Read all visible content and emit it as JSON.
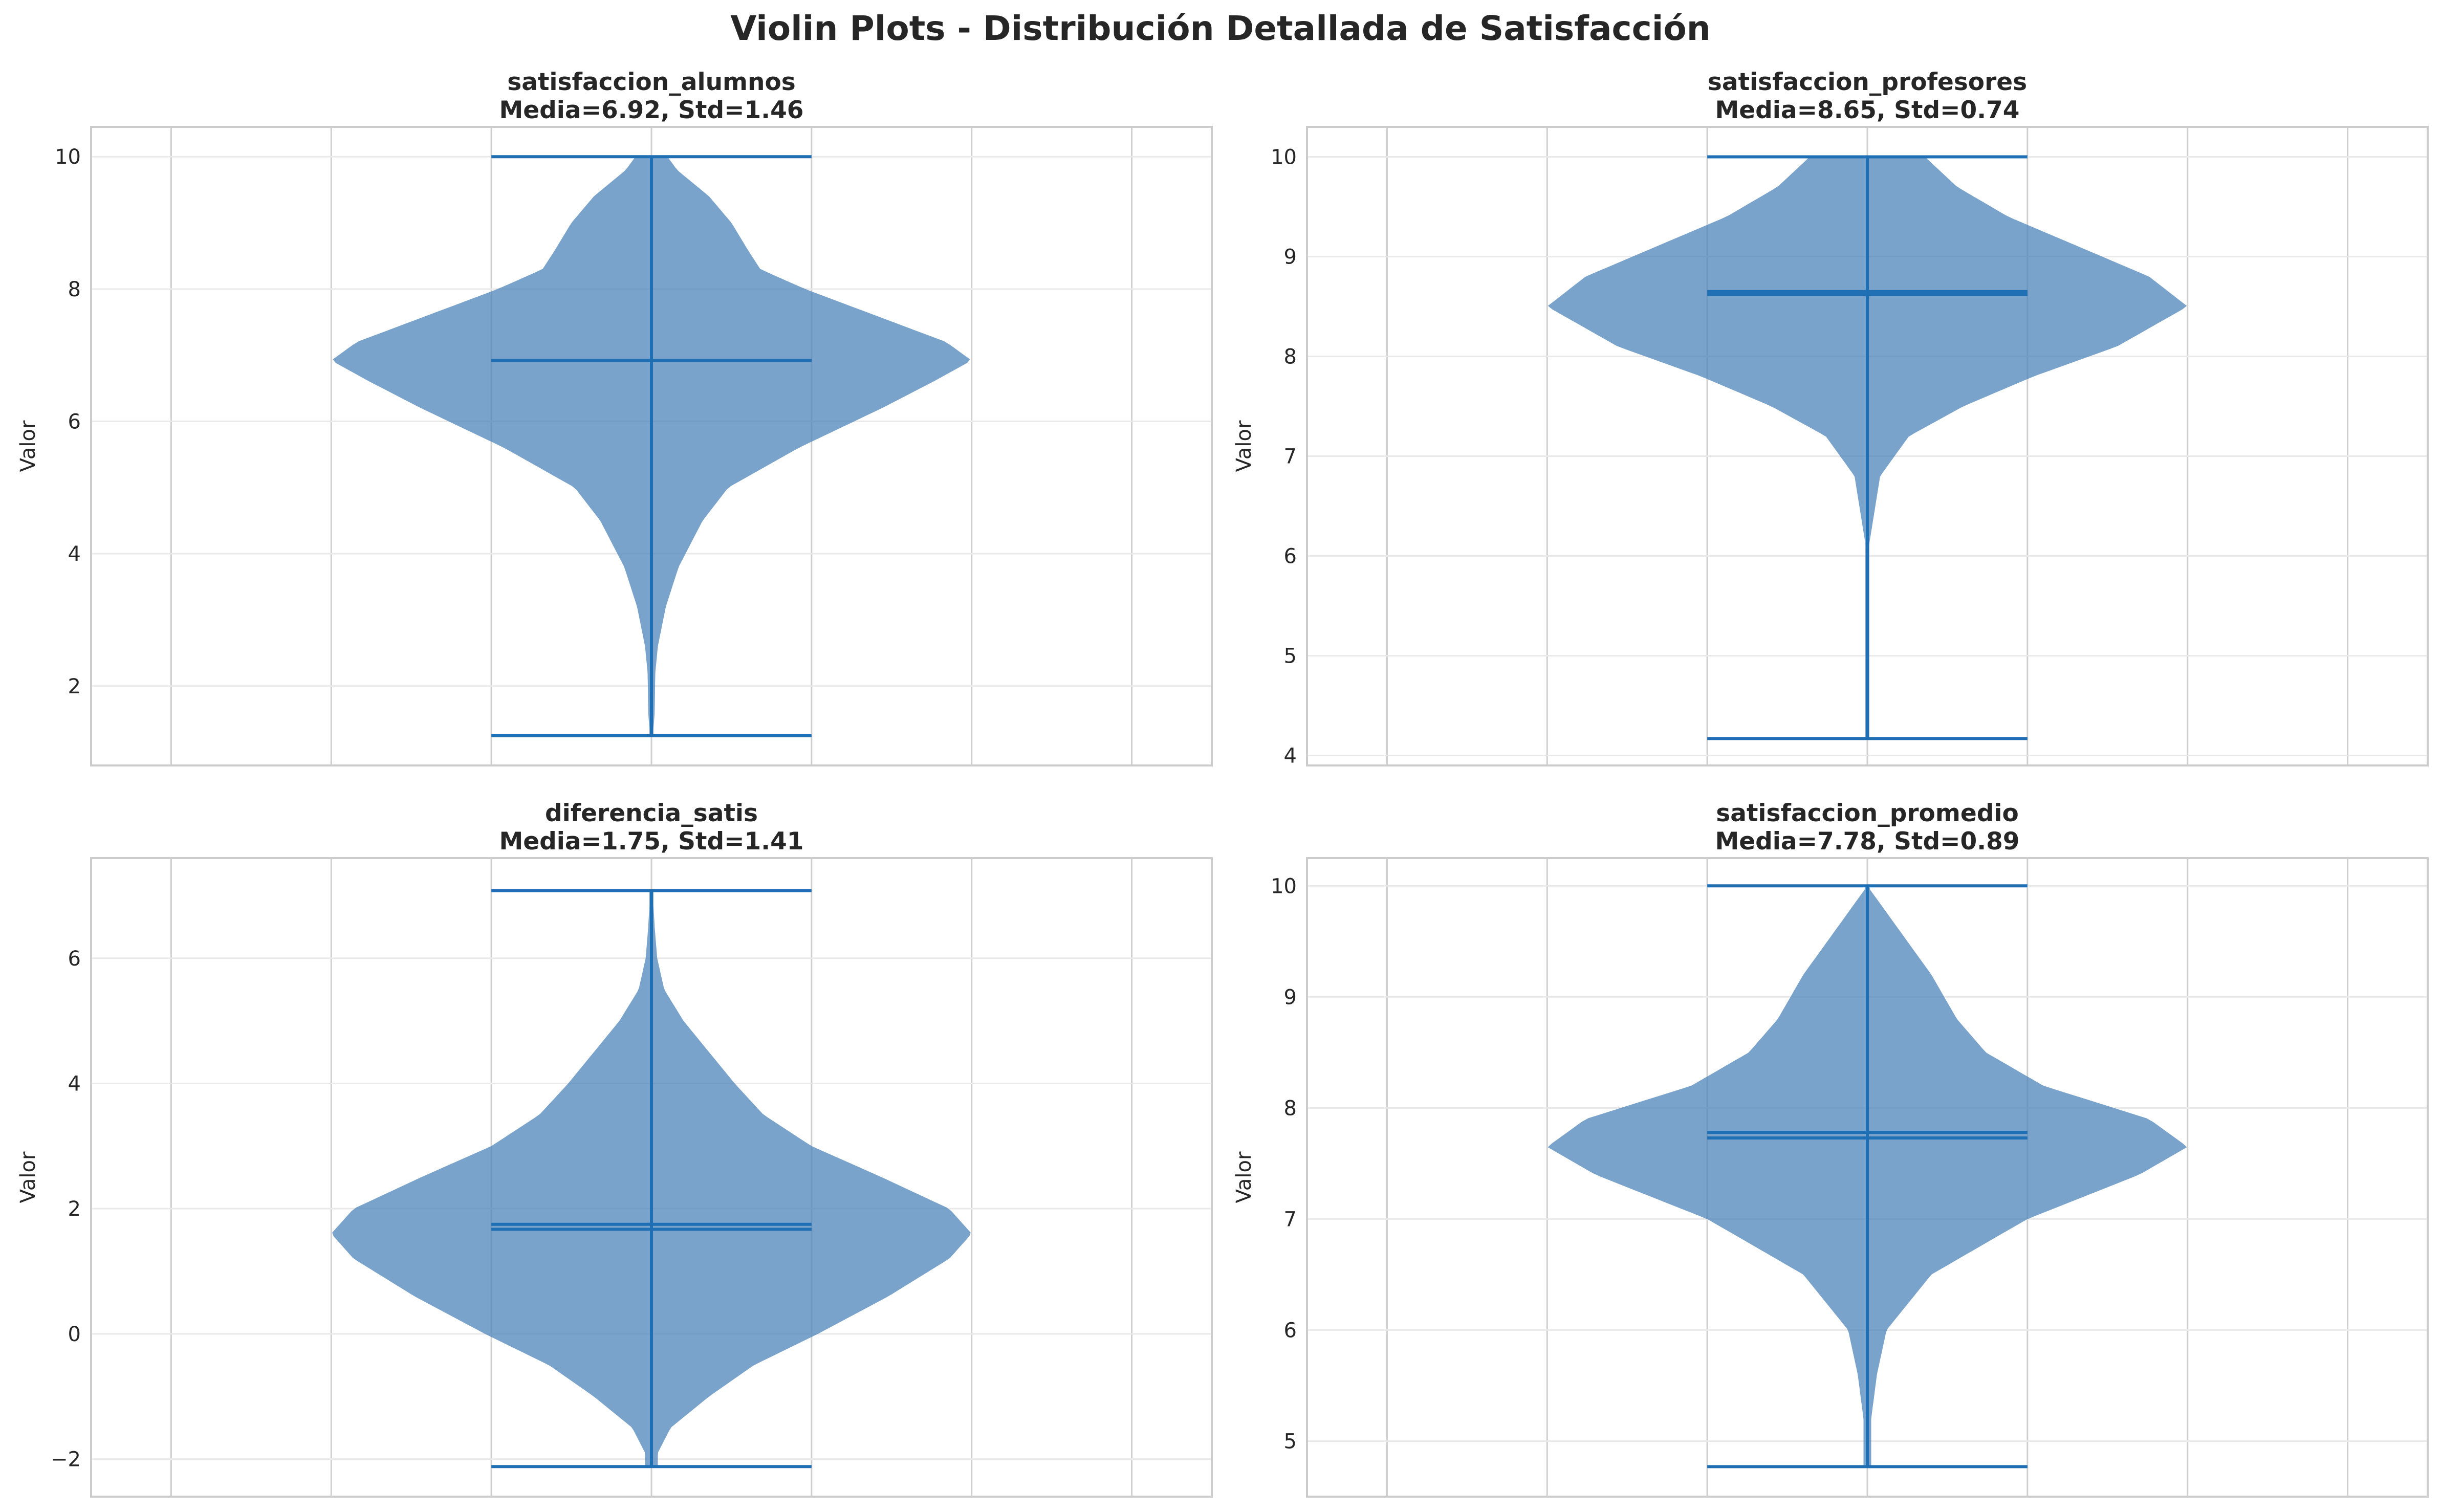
{
  "title": "Violin Plots - Distribución Detallada de Satisfacción",
  "colors": {
    "violin_fill": "#4c83b9",
    "line": "#1f6fb4",
    "grid": "#e9e9e9",
    "vgrid": "#cfcfcf",
    "spine": "#cccccc"
  },
  "chart_data": [
    {
      "type": "violin",
      "title_line1": "satisfaccion_alumnos",
      "title_line2": "Media=6.92, Std=1.46",
      "ylabel": "Valor",
      "ylim": [
        0.8,
        10.45
      ],
      "yticks": [
        2,
        4,
        6,
        8,
        10
      ],
      "ytick_labels": [
        "2",
        "4",
        "6",
        "8",
        "10"
      ],
      "stats": {
        "min": 1.25,
        "max": 10.0,
        "mean": 6.92,
        "median": 6.92
      },
      "density": [
        [
          1.25,
          0.005
        ],
        [
          1.6,
          0.01
        ],
        [
          2.2,
          0.012
        ],
        [
          2.6,
          0.02
        ],
        [
          3.2,
          0.045
        ],
        [
          3.8,
          0.085
        ],
        [
          4.5,
          0.16
        ],
        [
          5.0,
          0.24
        ],
        [
          5.6,
          0.46
        ],
        [
          6.2,
          0.72
        ],
        [
          6.6,
          0.88
        ],
        [
          6.92,
          1.0
        ],
        [
          7.2,
          0.92
        ],
        [
          7.6,
          0.7
        ],
        [
          8.0,
          0.48
        ],
        [
          8.3,
          0.34
        ],
        [
          8.6,
          0.3
        ],
        [
          9.0,
          0.25
        ],
        [
          9.4,
          0.18
        ],
        [
          9.8,
          0.08
        ],
        [
          10.0,
          0.05
        ]
      ]
    },
    {
      "type": "violin",
      "title_line1": "satisfaccion_profesores",
      "title_line2": "Media=8.65, Std=0.74",
      "ylabel": "Valor",
      "ylim": [
        3.9,
        10.3
      ],
      "yticks": [
        4,
        5,
        6,
        7,
        8,
        9,
        10
      ],
      "ytick_labels": [
        "4",
        "5",
        "6",
        "7",
        "8",
        "9",
        "10"
      ],
      "stats": {
        "min": 4.17,
        "max": 10.0,
        "mean": 8.65,
        "median": 8.62
      },
      "density": [
        [
          4.17,
          0.0
        ],
        [
          5.5,
          0.0
        ],
        [
          6.0,
          0.0
        ],
        [
          6.3,
          0.015
        ],
        [
          6.8,
          0.04
        ],
        [
          7.2,
          0.13
        ],
        [
          7.5,
          0.3
        ],
        [
          7.8,
          0.52
        ],
        [
          8.1,
          0.78
        ],
        [
          8.5,
          1.0
        ],
        [
          8.8,
          0.88
        ],
        [
          9.1,
          0.66
        ],
        [
          9.4,
          0.44
        ],
        [
          9.7,
          0.28
        ],
        [
          10.0,
          0.18
        ]
      ]
    },
    {
      "type": "violin",
      "title_line1": "diferencia_satis",
      "title_line2": "Media=1.75, Std=1.41",
      "ylabel": "Valor",
      "ylim": [
        -2.6,
        7.6
      ],
      "yticks": [
        -2,
        0,
        2,
        4,
        6
      ],
      "ytick_labels": [
        "−2",
        "0",
        "2",
        "4",
        "6"
      ],
      "stats": {
        "min": -2.12,
        "max": 7.08,
        "mean": 1.75,
        "median": 1.67
      },
      "density": [
        [
          -2.12,
          0.02
        ],
        [
          -1.9,
          0.02
        ],
        [
          -1.5,
          0.06
        ],
        [
          -1.0,
          0.18
        ],
        [
          -0.5,
          0.32
        ],
        [
          0.0,
          0.52
        ],
        [
          0.6,
          0.74
        ],
        [
          1.2,
          0.93
        ],
        [
          1.6,
          1.0
        ],
        [
          2.0,
          0.93
        ],
        [
          2.5,
          0.72
        ],
        [
          3.0,
          0.5
        ],
        [
          3.5,
          0.35
        ],
        [
          4.0,
          0.26
        ],
        [
          4.5,
          0.18
        ],
        [
          5.0,
          0.1
        ],
        [
          5.5,
          0.04
        ],
        [
          6.0,
          0.018
        ],
        [
          6.5,
          0.01
        ],
        [
          7.08,
          0.004
        ]
      ]
    },
    {
      "type": "violin",
      "title_line1": "satisfaccion_promedio",
      "title_line2": "Media=7.78, Std=0.89",
      "ylabel": "Valor",
      "ylim": [
        4.5,
        10.25
      ],
      "yticks": [
        5,
        6,
        7,
        8,
        9,
        10
      ],
      "ytick_labels": [
        "5",
        "6",
        "7",
        "8",
        "9",
        "10"
      ],
      "stats": {
        "min": 4.77,
        "max": 10.0,
        "mean": 7.78,
        "median": 7.73
      },
      "density": [
        [
          4.77,
          0.012
        ],
        [
          5.2,
          0.012
        ],
        [
          5.6,
          0.03
        ],
        [
          6.0,
          0.06
        ],
        [
          6.5,
          0.2
        ],
        [
          7.0,
          0.5
        ],
        [
          7.4,
          0.85
        ],
        [
          7.65,
          1.0
        ],
        [
          7.9,
          0.88
        ],
        [
          8.2,
          0.55
        ],
        [
          8.5,
          0.37
        ],
        [
          8.8,
          0.28
        ],
        [
          9.2,
          0.2
        ],
        [
          9.6,
          0.1
        ],
        [
          10.0,
          0.0
        ]
      ]
    }
  ]
}
